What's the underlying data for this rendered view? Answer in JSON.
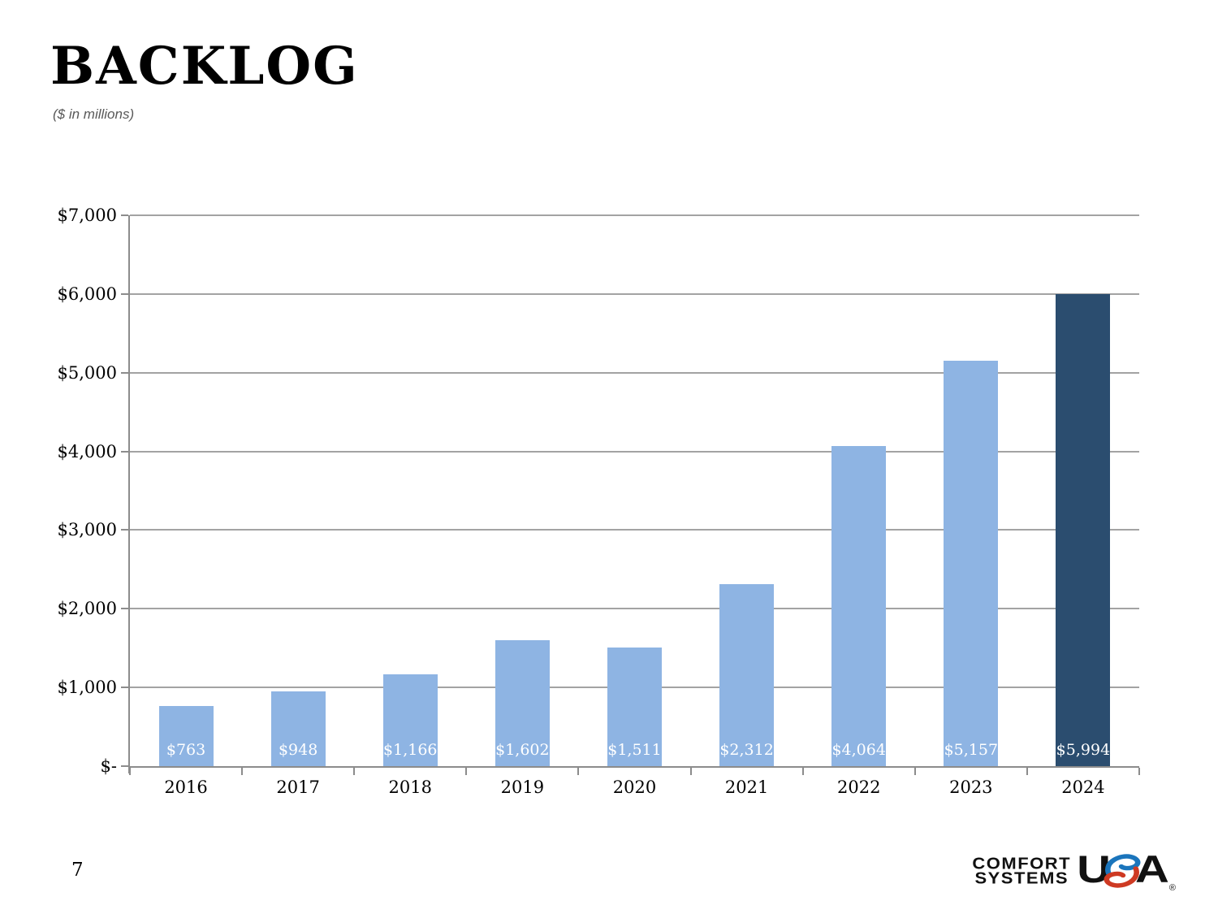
{
  "header": {
    "title": "BACKLOG",
    "subtitle": "($ in millions)"
  },
  "chart_data": {
    "type": "bar",
    "title": "BACKLOG",
    "subtitle": "($ in millions)",
    "categories": [
      "2016",
      "2017",
      "2018",
      "2019",
      "2020",
      "2021",
      "2022",
      "2023",
      "2024"
    ],
    "values": [
      763,
      948,
      1166,
      1602,
      1511,
      2312,
      4064,
      5157,
      5994
    ],
    "value_labels": [
      "$763",
      "$948",
      "$1,166",
      "$1,602",
      "$1,511",
      "$2,312",
      "$4,064",
      "$5,157",
      "$5,994"
    ],
    "xlabel": "",
    "ylabel": "",
    "ylim": [
      0,
      7000
    ],
    "y_tick_values": [
      0,
      1000,
      2000,
      3000,
      4000,
      5000,
      6000,
      7000
    ],
    "y_tick_labels": [
      "$-",
      "$1,000",
      "$2,000",
      "$3,000",
      "$4,000",
      "$5,000",
      "$6,000",
      "$7,000"
    ],
    "grid": "horizontal",
    "legend_position": "none",
    "bar_color": "#8EB4E3",
    "highlight_color": "#2B4D6F",
    "highlight_index": 8,
    "gridline_color": "#A3A3A3",
    "value_label_color": "#FFFFFF"
  },
  "footer": {
    "page_number": "7"
  },
  "logo": {
    "line1": "COMFORT",
    "line2": "SYSTEMS",
    "usa_u": "U",
    "usa_a": "A",
    "registered": "®",
    "blue": "#1B75BC",
    "red": "#CE3A23"
  }
}
